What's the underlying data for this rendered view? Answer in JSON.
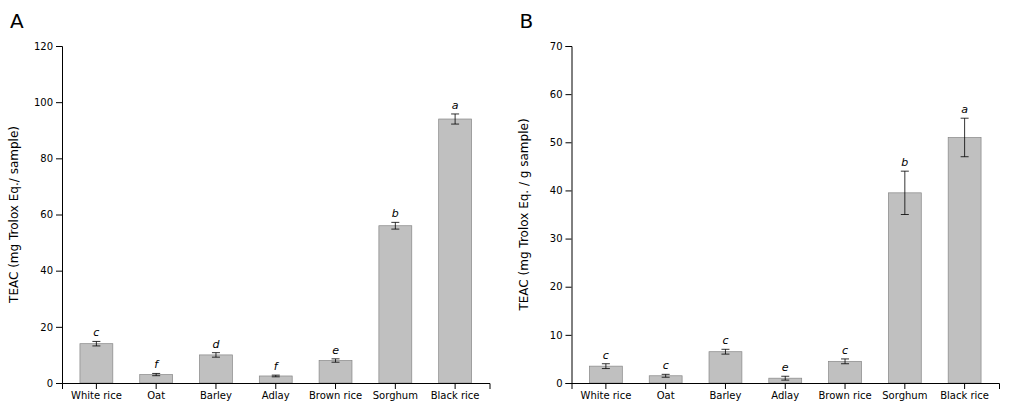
{
  "chart_data": [
    {
      "type": "bar",
      "title": "A",
      "categories": [
        "White rice",
        "Oat",
        "Barley",
        "Adlay",
        "Brown rice",
        "Sorghum",
        "Black rice"
      ],
      "values": [
        14.0,
        3.0,
        10.0,
        2.5,
        8.0,
        56.0,
        94.0
      ],
      "errors": [
        0.8,
        0.4,
        0.8,
        0.3,
        0.6,
        1.2,
        1.8
      ],
      "annotations": [
        "c",
        "f",
        "d",
        "f",
        "e",
        "b",
        "a"
      ],
      "ylabel": "TEAC (mg Trolox Eq./ sample)",
      "ylim": [
        0,
        120
      ],
      "yticks": [
        0,
        20,
        40,
        60,
        80,
        100,
        120
      ],
      "color": "#c0c0c0",
      "grid": false
    },
    {
      "type": "bar",
      "title": "B",
      "categories": [
        "White rice",
        "Oat",
        "Barley",
        "Adlay",
        "Brown rice",
        "Sorghum",
        "Black rice"
      ],
      "values": [
        3.5,
        1.5,
        6.5,
        1.0,
        4.5,
        39.5,
        51.0
      ],
      "errors": [
        0.5,
        0.3,
        0.5,
        0.4,
        0.5,
        4.5,
        4.0
      ],
      "annotations": [
        "c",
        "c",
        "c",
        "e",
        "c",
        "b",
        "a"
      ],
      "ylabel": "TEAC (mg Trolox Eq. / g sample)",
      "ylim": [
        0,
        70
      ],
      "yticks": [
        0,
        10,
        20,
        30,
        40,
        50,
        60,
        70
      ],
      "color": "#c0c0c0",
      "grid": false
    }
  ]
}
